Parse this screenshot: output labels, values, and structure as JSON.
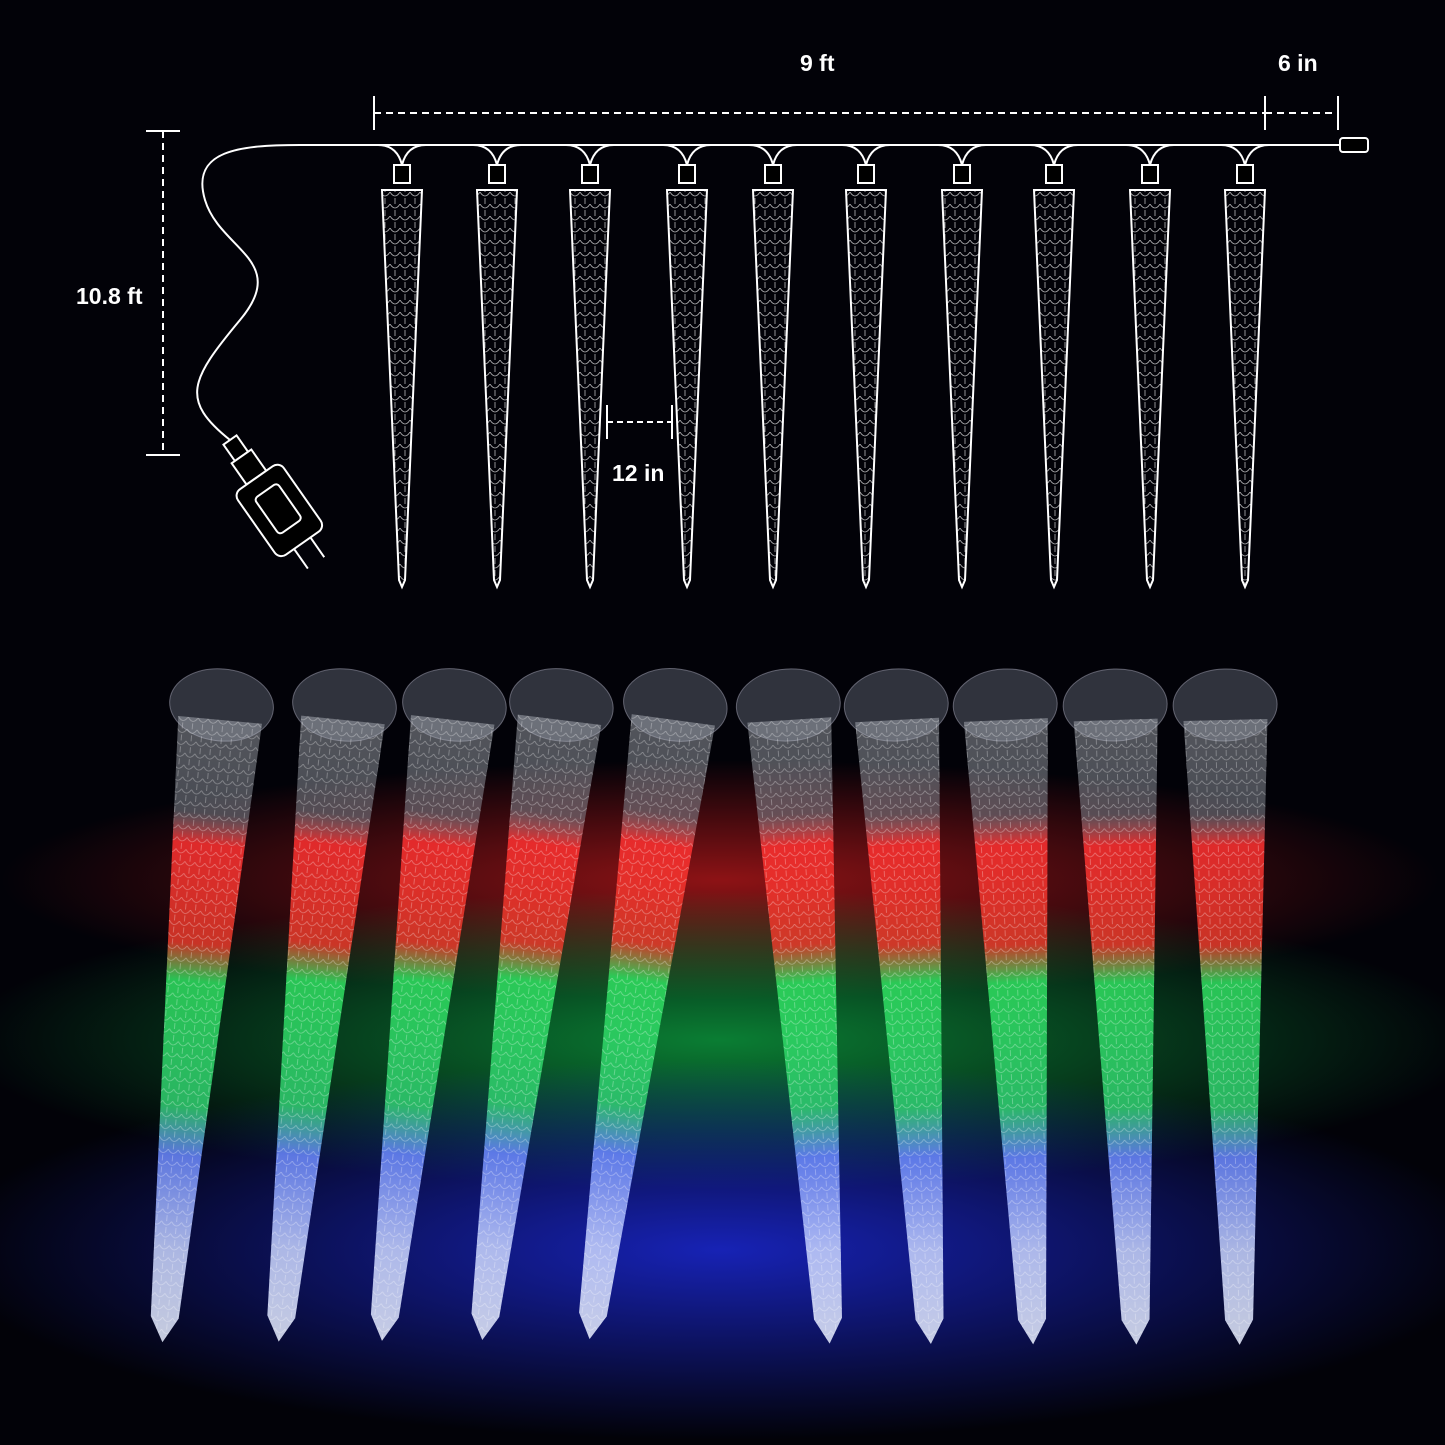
{
  "dimensions": {
    "width_label": "9 ft",
    "end_lead_label": "6 in",
    "cord_label": "10.8 ft",
    "spacing_label": "12 in"
  },
  "colors": {
    "background": "#020208",
    "line": "#ffffff",
    "red": "#ff2a2a",
    "green": "#22e05a",
    "blue": "#3a4cff"
  }
}
